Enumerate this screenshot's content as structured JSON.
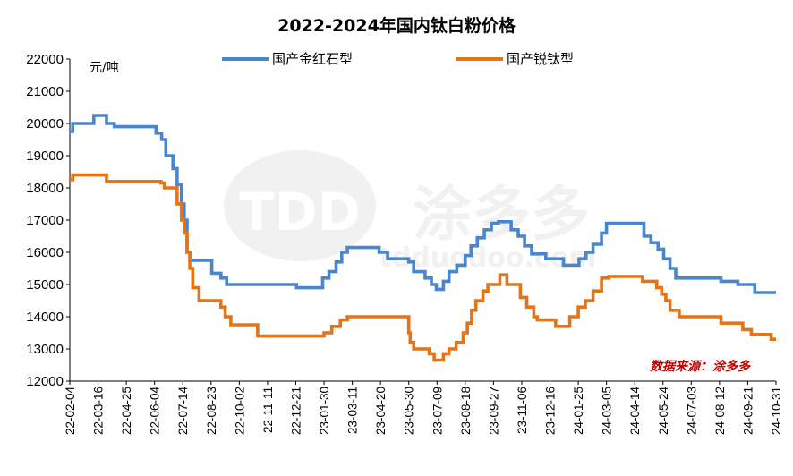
{
  "chart_data": {
    "type": "line",
    "title": "2022-2024年国内钛白粉价格",
    "ylabel": "元/吨",
    "ylim": [
      12000,
      22000
    ],
    "yticks": [
      "22000",
      "21000",
      "20000",
      "19000",
      "18000",
      "17000",
      "16000",
      "15000",
      "14000",
      "13000",
      "12000"
    ],
    "ytick_values": [
      22000,
      21000,
      20000,
      19000,
      18000,
      17000,
      16000,
      15000,
      14000,
      13000,
      12000
    ],
    "xlim": [
      "2022-02-04",
      "2024-10-31"
    ],
    "xticks": [
      "22-02-04",
      "22-03-16",
      "22-04-25",
      "22-06-04",
      "22-07-14",
      "22-08-23",
      "22-10-02",
      "22-11-11",
      "22-12-21",
      "23-01-30",
      "23-03-11",
      "23-04-20",
      "23-05-30",
      "23-07-09",
      "23-08-18",
      "23-09-27",
      "23-11-06",
      "23-12-16",
      "24-01-25",
      "24-03-05",
      "24-04-14",
      "24-05-24",
      "24-07-03",
      "24-08-12",
      "24-09-21",
      "24-10-31"
    ],
    "legend_position": "top",
    "grid": false,
    "source_note": "数据来源：涂多多",
    "source_color": "#c00000",
    "watermark": {
      "text_cn": "涂多多",
      "text_en": "tdduodoo.com",
      "logo": "TDD"
    },
    "series": [
      {
        "name": "国产金红石型",
        "color": "#4a86cf",
        "points": [
          [
            "2022-02-04",
            19750
          ],
          [
            "2022-02-08",
            20000
          ],
          [
            "2022-03-10",
            20250
          ],
          [
            "2022-03-28",
            20000
          ],
          [
            "2022-04-08",
            19900
          ],
          [
            "2022-06-06",
            19700
          ],
          [
            "2022-06-14",
            19500
          ],
          [
            "2022-06-20",
            19000
          ],
          [
            "2022-06-30",
            18600
          ],
          [
            "2022-07-06",
            18100
          ],
          [
            "2022-07-12",
            17500
          ],
          [
            "2022-07-16",
            17000
          ],
          [
            "2022-07-20",
            16000
          ],
          [
            "2022-07-24",
            15750
          ],
          [
            "2022-08-24",
            15350
          ],
          [
            "2022-09-06",
            15200
          ],
          [
            "2022-09-14",
            15000
          ],
          [
            "2022-11-22",
            15000
          ],
          [
            "2022-12-22",
            14900
          ],
          [
            "2023-01-28",
            15200
          ],
          [
            "2023-02-06",
            15400
          ],
          [
            "2023-02-16",
            15700
          ],
          [
            "2023-02-24",
            16000
          ],
          [
            "2023-03-04",
            16150
          ],
          [
            "2023-04-18",
            16000
          ],
          [
            "2023-04-30",
            15800
          ],
          [
            "2023-05-30",
            15700
          ],
          [
            "2023-06-06",
            15400
          ],
          [
            "2023-06-22",
            15200
          ],
          [
            "2023-07-01",
            15000
          ],
          [
            "2023-07-08",
            14850
          ],
          [
            "2023-07-18",
            15100
          ],
          [
            "2023-07-26",
            15400
          ],
          [
            "2023-08-06",
            15600
          ],
          [
            "2023-08-18",
            15900
          ],
          [
            "2023-08-26",
            16200
          ],
          [
            "2023-09-04",
            16450
          ],
          [
            "2023-09-14",
            16700
          ],
          [
            "2023-09-24",
            16900
          ],
          [
            "2023-10-04",
            16950
          ],
          [
            "2023-10-22",
            16700
          ],
          [
            "2023-11-01",
            16500
          ],
          [
            "2023-11-10",
            16200
          ],
          [
            "2023-11-20",
            15950
          ],
          [
            "2023-12-10",
            15800
          ],
          [
            "2024-01-04",
            15600
          ],
          [
            "2024-01-26",
            15800
          ],
          [
            "2024-02-05",
            16000
          ],
          [
            "2024-02-15",
            16250
          ],
          [
            "2024-02-27",
            16600
          ],
          [
            "2024-03-05",
            16900
          ],
          [
            "2024-04-27",
            16500
          ],
          [
            "2024-05-07",
            16300
          ],
          [
            "2024-05-17",
            16100
          ],
          [
            "2024-05-25",
            15800
          ],
          [
            "2024-06-03",
            15500
          ],
          [
            "2024-06-11",
            15200
          ],
          [
            "2024-08-14",
            15100
          ],
          [
            "2024-09-07",
            15000
          ],
          [
            "2024-10-01",
            14750
          ],
          [
            "2024-10-31",
            14750
          ]
        ]
      },
      {
        "name": "国产锐钛型",
        "color": "#e47418",
        "points": [
          [
            "2022-02-04",
            18250
          ],
          [
            "2022-02-08",
            18400
          ],
          [
            "2022-03-28",
            18200
          ],
          [
            "2022-06-13",
            18150
          ],
          [
            "2022-06-18",
            18000
          ],
          [
            "2022-07-06",
            17500
          ],
          [
            "2022-07-12",
            17000
          ],
          [
            "2022-07-16",
            16600
          ],
          [
            "2022-07-20",
            16000
          ],
          [
            "2022-07-24",
            15500
          ],
          [
            "2022-07-28",
            14900
          ],
          [
            "2022-08-06",
            14500
          ],
          [
            "2022-09-06",
            14300
          ],
          [
            "2022-09-12",
            14000
          ],
          [
            "2022-09-20",
            13750
          ],
          [
            "2022-10-28",
            13400
          ],
          [
            "2023-01-30",
            13500
          ],
          [
            "2023-02-10",
            13700
          ],
          [
            "2023-02-22",
            13900
          ],
          [
            "2023-03-04",
            14000
          ],
          [
            "2023-05-30",
            13500
          ],
          [
            "2023-06-01",
            13200
          ],
          [
            "2023-06-06",
            13000
          ],
          [
            "2023-06-28",
            12850
          ],
          [
            "2023-07-05",
            12650
          ],
          [
            "2023-07-18",
            12850
          ],
          [
            "2023-07-26",
            13000
          ],
          [
            "2023-08-05",
            13200
          ],
          [
            "2023-08-15",
            13500
          ],
          [
            "2023-08-21",
            13800
          ],
          [
            "2023-08-27",
            14200
          ],
          [
            "2023-09-02",
            14500
          ],
          [
            "2023-09-12",
            14800
          ],
          [
            "2023-09-19",
            15000
          ],
          [
            "2023-10-06",
            15300
          ],
          [
            "2023-10-16",
            15000
          ],
          [
            "2023-11-04",
            14600
          ],
          [
            "2023-11-13",
            14300
          ],
          [
            "2023-11-23",
            14000
          ],
          [
            "2023-11-28",
            13900
          ],
          [
            "2023-12-24",
            13700
          ],
          [
            "2024-01-13",
            14000
          ],
          [
            "2024-01-25",
            14300
          ],
          [
            "2024-02-04",
            14500
          ],
          [
            "2024-02-15",
            14800
          ],
          [
            "2024-02-27",
            15200
          ],
          [
            "2024-03-08",
            15250
          ],
          [
            "2024-04-25",
            15100
          ],
          [
            "2024-05-15",
            14900
          ],
          [
            "2024-05-22",
            14700
          ],
          [
            "2024-05-28",
            14500
          ],
          [
            "2024-06-03",
            14200
          ],
          [
            "2024-06-16",
            14000
          ],
          [
            "2024-08-14",
            13800
          ],
          [
            "2024-09-14",
            13600
          ],
          [
            "2024-09-26",
            13450
          ],
          [
            "2024-10-24",
            13300
          ],
          [
            "2024-10-31",
            13300
          ]
        ]
      }
    ]
  }
}
